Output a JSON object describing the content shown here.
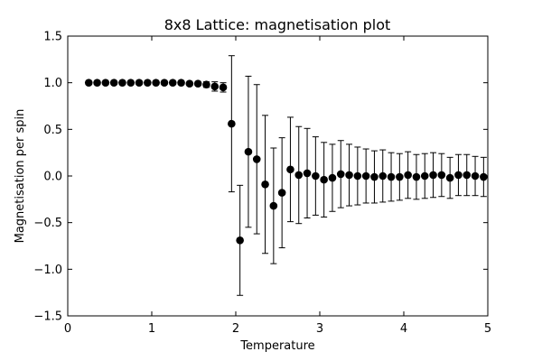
{
  "chart_data": {
    "type": "scatter",
    "title": "8x8 Lattice: magnetisation plot",
    "xlabel": "Temperature",
    "ylabel": "Magnetisation per spin",
    "xlim": [
      0,
      5
    ],
    "ylim": [
      -1.5,
      1.5
    ],
    "xticks": [
      "0",
      "1",
      "2",
      "3",
      "4",
      "5"
    ],
    "yticks": [
      "−1.5",
      "−1.0",
      "−0.5",
      "0.0",
      "0.5",
      "1.0",
      "1.5"
    ],
    "grid": false,
    "marker_color": "#000000",
    "series": [
      {
        "points": [
          {
            "x": 0.25,
            "y": 1.0,
            "err": 0.0
          },
          {
            "x": 0.35,
            "y": 1.0,
            "err": 0.0
          },
          {
            "x": 0.45,
            "y": 1.0,
            "err": 0.0
          },
          {
            "x": 0.55,
            "y": 1.0,
            "err": 0.0
          },
          {
            "x": 0.65,
            "y": 1.0,
            "err": 0.0
          },
          {
            "x": 0.75,
            "y": 1.0,
            "err": 0.0
          },
          {
            "x": 0.85,
            "y": 1.0,
            "err": 0.0
          },
          {
            "x": 0.95,
            "y": 1.0,
            "err": 0.0
          },
          {
            "x": 1.05,
            "y": 1.0,
            "err": 0.0
          },
          {
            "x": 1.15,
            "y": 1.0,
            "err": 0.0
          },
          {
            "x": 1.25,
            "y": 1.0,
            "err": 0.0
          },
          {
            "x": 1.35,
            "y": 1.0,
            "err": 0.005
          },
          {
            "x": 1.45,
            "y": 0.99,
            "err": 0.01
          },
          {
            "x": 1.55,
            "y": 0.99,
            "err": 0.015
          },
          {
            "x": 1.65,
            "y": 0.98,
            "err": 0.03
          },
          {
            "x": 1.75,
            "y": 0.96,
            "err": 0.05
          },
          {
            "x": 1.85,
            "y": 0.95,
            "err": 0.05
          },
          {
            "x": 1.95,
            "y": 0.56,
            "err": 0.73
          },
          {
            "x": 2.05,
            "y": -0.69,
            "err": 0.59
          },
          {
            "x": 2.15,
            "y": 0.26,
            "err": 0.81
          },
          {
            "x": 2.25,
            "y": 0.18,
            "err": 0.8
          },
          {
            "x": 2.35,
            "y": -0.09,
            "err": 0.74
          },
          {
            "x": 2.45,
            "y": -0.32,
            "err": 0.62
          },
          {
            "x": 2.55,
            "y": -0.18,
            "err": 0.59
          },
          {
            "x": 2.65,
            "y": 0.07,
            "err": 0.56
          },
          {
            "x": 2.75,
            "y": 0.01,
            "err": 0.52
          },
          {
            "x": 2.85,
            "y": 0.03,
            "err": 0.48
          },
          {
            "x": 2.95,
            "y": 0.0,
            "err": 0.42
          },
          {
            "x": 3.05,
            "y": -0.04,
            "err": 0.4
          },
          {
            "x": 3.15,
            "y": -0.02,
            "err": 0.36
          },
          {
            "x": 3.25,
            "y": 0.02,
            "err": 0.36
          },
          {
            "x": 3.35,
            "y": 0.01,
            "err": 0.33
          },
          {
            "x": 3.45,
            "y": 0.0,
            "err": 0.31
          },
          {
            "x": 3.55,
            "y": 0.0,
            "err": 0.29
          },
          {
            "x": 3.65,
            "y": -0.01,
            "err": 0.28
          },
          {
            "x": 3.75,
            "y": 0.0,
            "err": 0.28
          },
          {
            "x": 3.85,
            "y": -0.01,
            "err": 0.26
          },
          {
            "x": 3.95,
            "y": -0.01,
            "err": 0.25
          },
          {
            "x": 4.05,
            "y": 0.01,
            "err": 0.25
          },
          {
            "x": 4.15,
            "y": -0.01,
            "err": 0.24
          },
          {
            "x": 4.25,
            "y": 0.0,
            "err": 0.24
          },
          {
            "x": 4.35,
            "y": 0.01,
            "err": 0.24
          },
          {
            "x": 4.45,
            "y": 0.01,
            "err": 0.23
          },
          {
            "x": 4.55,
            "y": -0.02,
            "err": 0.22
          },
          {
            "x": 4.65,
            "y": 0.01,
            "err": 0.22
          },
          {
            "x": 4.75,
            "y": 0.01,
            "err": 0.22
          },
          {
            "x": 4.85,
            "y": 0.0,
            "err": 0.21
          },
          {
            "x": 4.95,
            "y": -0.01,
            "err": 0.21
          }
        ]
      }
    ]
  }
}
